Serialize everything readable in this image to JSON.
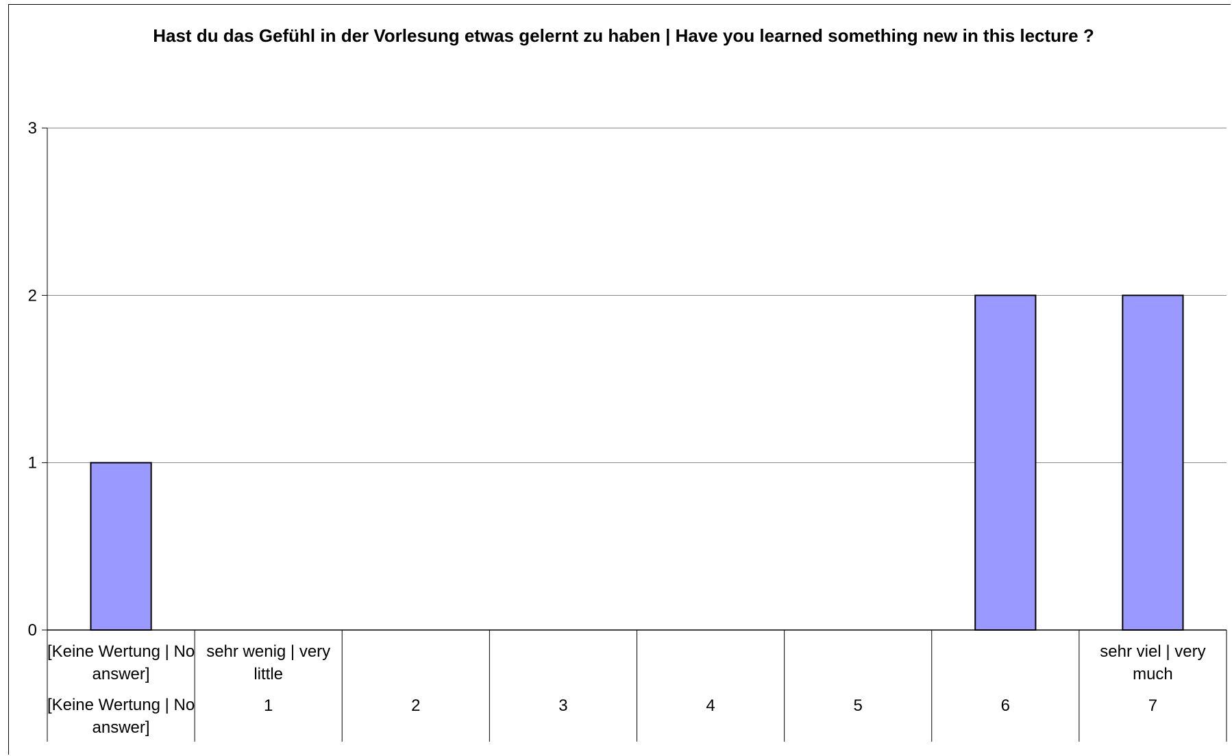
{
  "chart_data": {
    "type": "bar",
    "title": "Hast du das Gefühl in der Vorlesung etwas gelernt zu haben | Have you learned something new in this lecture ?",
    "categories": [
      "[Keine Wertung | No answer]",
      "1",
      "2",
      "3",
      "4",
      "5",
      "6",
      "7"
    ],
    "category_descriptions": [
      "[Keine Wertung | No answer]",
      "sehr wenig | very little",
      "",
      "",
      "",
      "",
      "",
      "sehr viel | very much"
    ],
    "values": [
      1,
      0,
      0,
      0,
      0,
      0,
      2,
      2
    ],
    "ylim": [
      0,
      3
    ],
    "yticks": [
      0,
      1,
      2,
      3
    ],
    "xlabel": "",
    "ylabel": "",
    "grid": true,
    "legend": "none",
    "bar_color": "#9999FF",
    "bar_edge_color": "#000000",
    "gridline_color": "#808080"
  }
}
